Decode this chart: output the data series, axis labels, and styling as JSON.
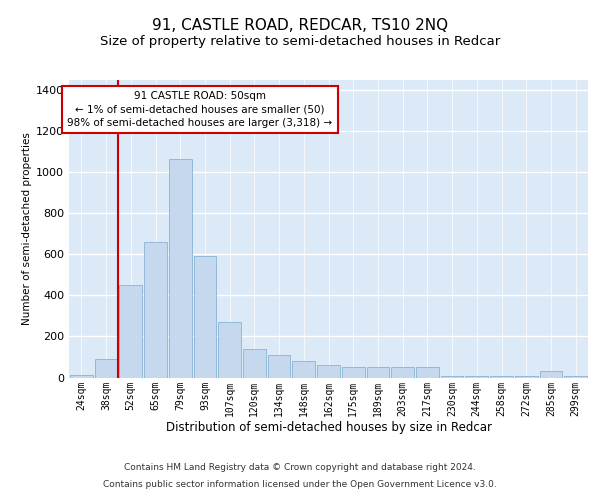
{
  "title": "91, CASTLE ROAD, REDCAR, TS10 2NQ",
  "subtitle": "Size of property relative to semi-detached houses in Redcar",
  "xlabel": "Distribution of semi-detached houses by size in Redcar",
  "ylabel": "Number of semi-detached properties",
  "footer_line1": "Contains HM Land Registry data © Crown copyright and database right 2024.",
  "footer_line2": "Contains public sector information licensed under the Open Government Licence v3.0.",
  "categories": [
    "24sqm",
    "38sqm",
    "52sqm",
    "65sqm",
    "79sqm",
    "93sqm",
    "107sqm",
    "120sqm",
    "134sqm",
    "148sqm",
    "162sqm",
    "175sqm",
    "189sqm",
    "203sqm",
    "217sqm",
    "230sqm",
    "244sqm",
    "258sqm",
    "272sqm",
    "285sqm",
    "299sqm"
  ],
  "values": [
    10,
    90,
    450,
    660,
    1065,
    590,
    270,
    140,
    110,
    80,
    60,
    50,
    50,
    50,
    50,
    5,
    5,
    5,
    5,
    30,
    5
  ],
  "bar_color": "#c5d8ee",
  "bar_edge_color": "#7aaad0",
  "vline_color": "#cc0000",
  "annotation_title": "91 CASTLE ROAD: 50sqm",
  "annotation_line1": "← 1% of semi-detached houses are smaller (50)",
  "annotation_line2": "98% of semi-detached houses are larger (3,318) →",
  "vline_x": 1.5,
  "ylim": [
    0,
    1450
  ],
  "yticks": [
    0,
    200,
    400,
    600,
    800,
    1000,
    1200,
    1400
  ],
  "background_color": "#dce9f7",
  "grid_color": "#ffffff",
  "title_fontsize": 11,
  "subtitle_fontsize": 9.5,
  "footer_fontsize": 6.5
}
